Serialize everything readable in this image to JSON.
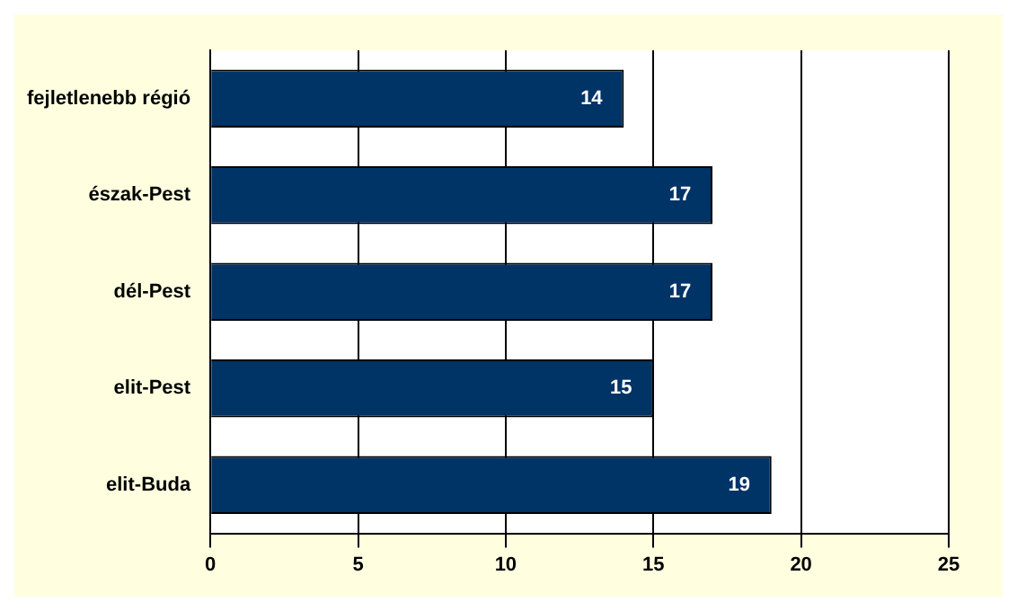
{
  "chart_data": {
    "type": "bar",
    "orientation": "horizontal",
    "categories": [
      "fejletlenebb régió",
      "észak-Pest",
      "dél-Pest",
      "elit-Pest",
      "elit-Buda"
    ],
    "values": [
      14,
      17,
      17,
      15,
      19
    ],
    "color": "#003366",
    "xlim": [
      0,
      25
    ],
    "xticks": [
      0,
      5,
      10,
      15,
      20,
      25
    ],
    "grid": "x",
    "data_labels": true
  }
}
